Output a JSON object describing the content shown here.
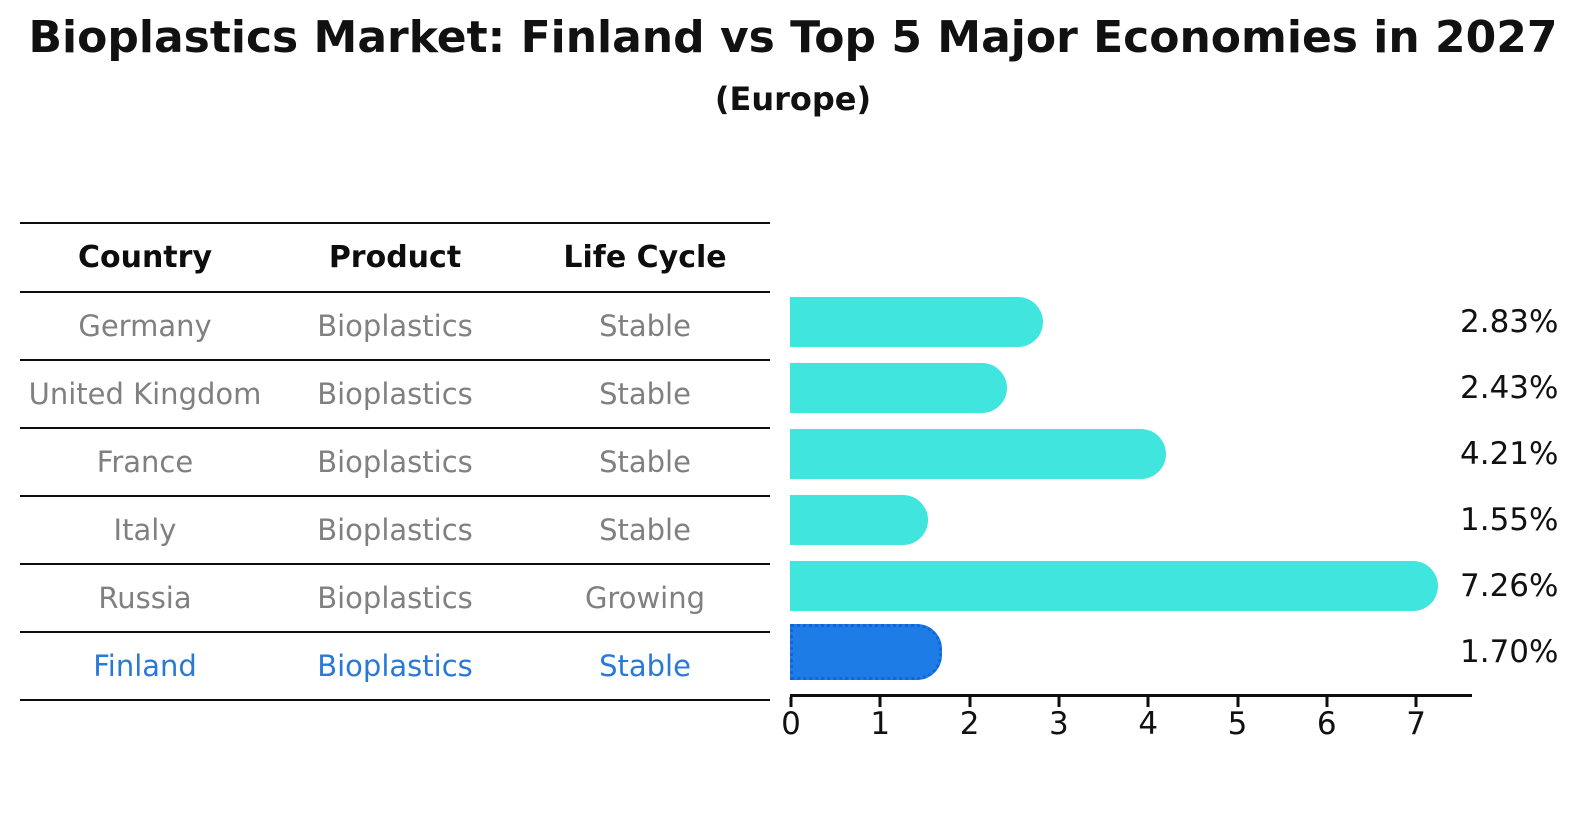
{
  "title": "Bioplastics Market: Finland vs Top 5 Major Economies in 2027",
  "subtitle": "(Europe)",
  "table": {
    "headers": [
      "Country",
      "Product",
      "Life Cycle"
    ],
    "rows": [
      {
        "country": "Germany",
        "product": "Bioplastics",
        "life_cycle": "Stable"
      },
      {
        "country": "United Kingdom",
        "product": "Bioplastics",
        "life_cycle": "Stable"
      },
      {
        "country": "France",
        "product": "Bioplastics",
        "life_cycle": "Stable"
      },
      {
        "country": "Italy",
        "product": "Bioplastics",
        "life_cycle": "Stable"
      },
      {
        "country": "Russia",
        "product": "Bioplastics",
        "life_cycle": "Growing"
      },
      {
        "country": "Finland",
        "product": "Bioplastics",
        "life_cycle": "Stable"
      }
    ],
    "highlight_row_index": 5,
    "highlight_text_color": "#2979D9",
    "normal_text_color": "#808080"
  },
  "chart_data": {
    "type": "bar",
    "orientation": "horizontal",
    "title": "Bioplastics Market: Finland vs Top 5 Major Economies in 2027 (Europe)",
    "categories": [
      "Germany",
      "United Kingdom",
      "France",
      "Italy",
      "Russia",
      "Finland"
    ],
    "values": [
      2.83,
      2.43,
      4.21,
      1.55,
      7.26,
      1.7
    ],
    "value_labels": [
      "2.83%",
      "2.43%",
      "4.21%",
      "1.55%",
      "7.26%",
      "1.70%"
    ],
    "xlabel": "",
    "ylabel": "",
    "xlim": [
      0,
      7.63
    ],
    "xticks": [
      "0",
      "1",
      "2",
      "3",
      "4",
      "5",
      "6",
      "7"
    ],
    "grid": false,
    "legend": false,
    "bar_color": "#40E5DE",
    "highlight": {
      "index": 5,
      "color": "#1E7CE6",
      "border_color": "#1565D8",
      "border_style": "dotted"
    },
    "axis_color": "#0d0d0d",
    "label_color": "#111111"
  }
}
